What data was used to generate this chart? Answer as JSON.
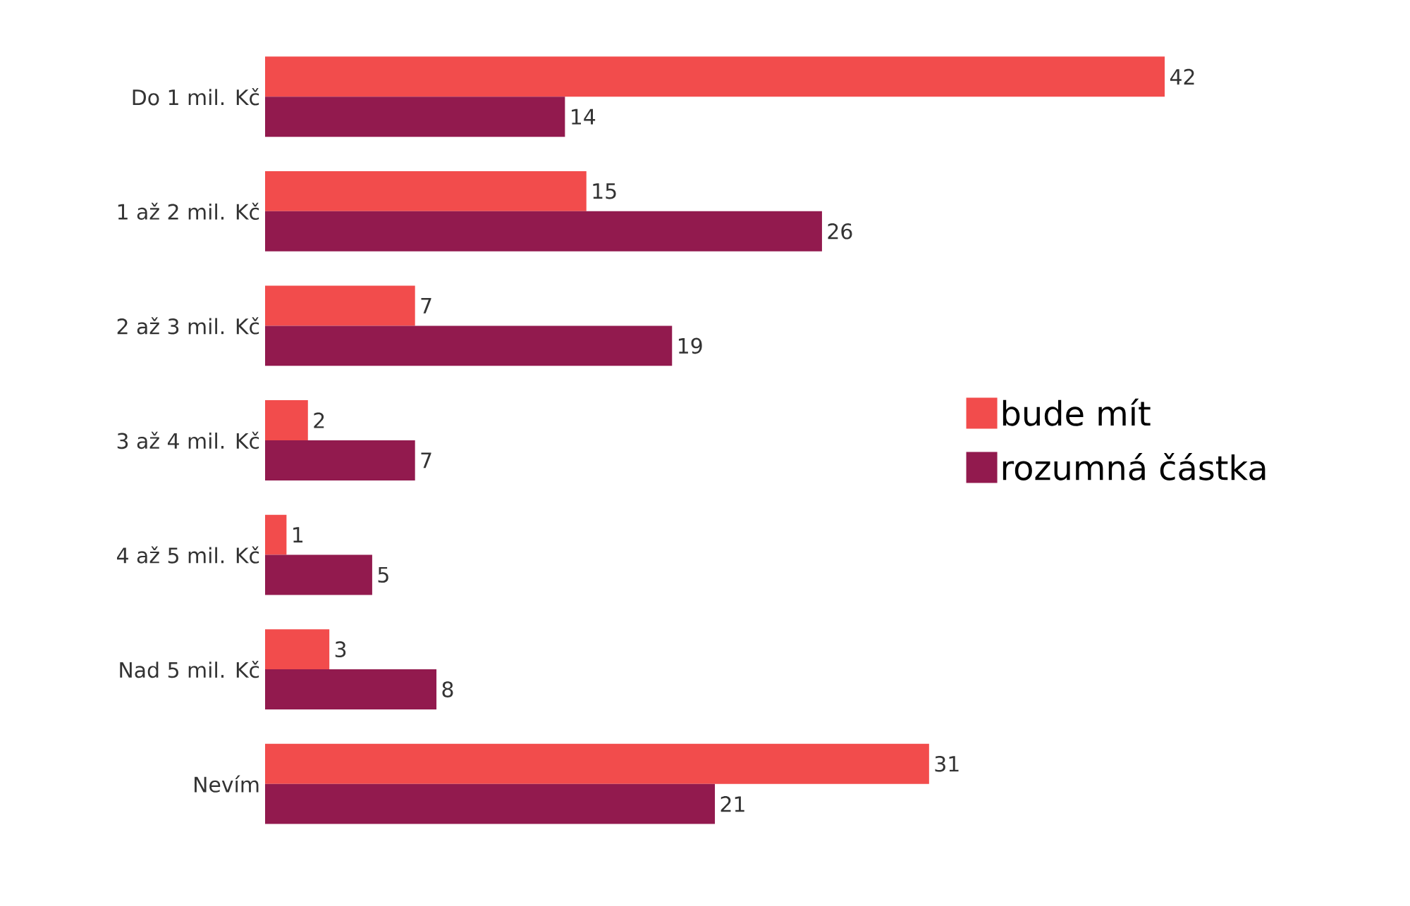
{
  "chart_data": {
    "type": "bar",
    "orientation": "horizontal",
    "categories": [
      "Do 1 mil. Kč",
      "1 až 2 mil. Kč",
      "2 až 3 mil. Kč",
      "3 až 4 mil. Kč",
      "4 až 5 mil. Kč",
      "Nad 5 mil. Kč",
      "Nevím"
    ],
    "series": [
      {
        "name": "bude mít",
        "color": "#f24c4c",
        "values": [
          42,
          15,
          7,
          2,
          1,
          3,
          31
        ]
      },
      {
        "name": "rozumná částka",
        "color": "#921a4e",
        "values": [
          14,
          26,
          19,
          7,
          5,
          8,
          21
        ]
      }
    ],
    "data_labels": true,
    "legend": "right",
    "grid": false,
    "tick_labels": "y"
  }
}
